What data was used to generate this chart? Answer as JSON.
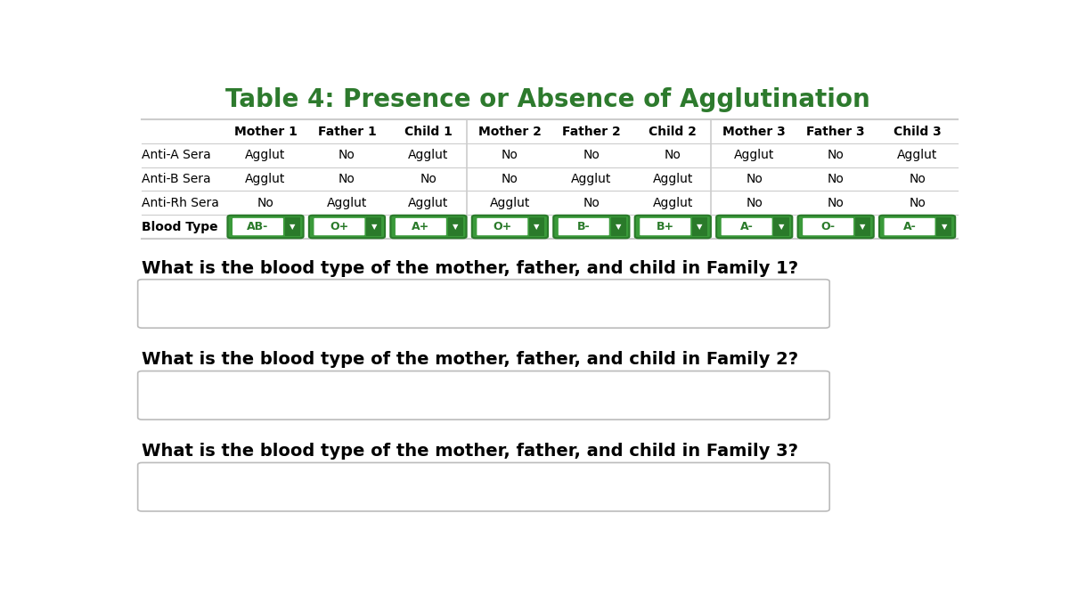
{
  "title": "Table 4: Presence or Absence of Agglutination",
  "title_color": "#2d7a2d",
  "title_fontsize": 20,
  "bg_color": "#ffffff",
  "col_headers": [
    "",
    "Mother 1",
    "Father 1",
    "Child 1",
    "Mother 2",
    "Father 2",
    "Child 2",
    "Mother 3",
    "Father 3",
    "Child 3"
  ],
  "row_labels": [
    "Anti-A Sera",
    "Anti-B Sera",
    "Anti-Rh Sera",
    "Blood Type"
  ],
  "table_data": [
    [
      "Agglut",
      "No",
      "Agglut",
      "No",
      "No",
      "No",
      "Agglut",
      "No",
      "Agglut"
    ],
    [
      "Agglut",
      "No",
      "No",
      "No",
      "Agglut",
      "Agglut",
      "No",
      "No",
      "No"
    ],
    [
      "No",
      "Agglut",
      "Agglut",
      "Agglut",
      "No",
      "Agglut",
      "No",
      "No",
      "No"
    ]
  ],
  "blood_types": [
    "AB-",
    "O+",
    "A+",
    "O+",
    "B-",
    "B+",
    "A-",
    "O-",
    "A-"
  ],
  "green_dark": "#2a7a2a",
  "green_btn": "#3a9a3a",
  "table_line_color": "#cccccc",
  "questions": [
    "What is the blood type of the mother, father, and child in Family 1?",
    "What is the blood type of the mother, father, and child in Family 2?",
    "What is the blood type of the mother, father, and child in Family 3?"
  ],
  "question_fontsize": 14,
  "question_color": "#000000",
  "label_fontweights": [
    "normal",
    "normal",
    "normal",
    "bold"
  ],
  "col_header_fontsize": 10,
  "data_fontsize": 10,
  "row_label_fontsize": 10
}
